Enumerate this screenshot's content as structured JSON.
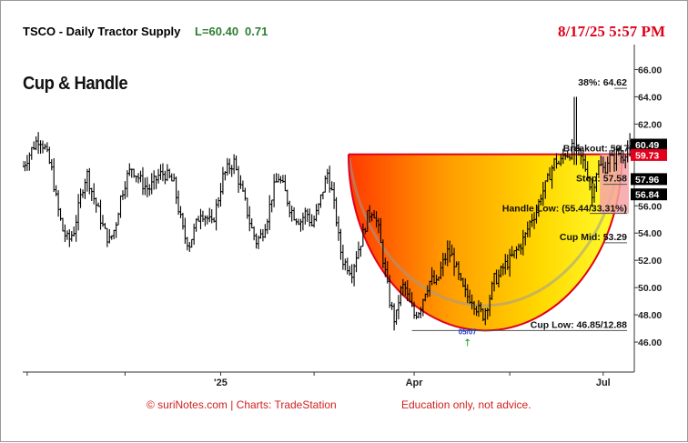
{
  "header": {
    "symbol_title": "TSCO - Daily  Tractor Supply",
    "last": "L=60.40",
    "change": "0.71",
    "timestamp": "8/17/25 5:57 PM"
  },
  "pattern_title": "Cup & Handle",
  "footer": {
    "credit": "© suriNotes.com |  Charts: TradeStation",
    "disclaimer": "Education only, not advice."
  },
  "colors": {
    "red": "#e0001b",
    "green_text": "#2e7d32",
    "cup_gradient": [
      "#ff3a00",
      "#ff9a00",
      "#ffd800",
      "#ffff30"
    ],
    "handle_zone": "#f6a3a6"
  },
  "chart_data": {
    "type": "ohlc",
    "x_tick_labels": [
      "'25",
      "Apr",
      "Jul"
    ],
    "y_ticks": [
      46,
      48,
      50,
      52,
      54,
      56,
      58,
      60,
      62,
      64,
      66
    ],
    "y_tick_labels": [
      "46.00",
      "48.00",
      "50.00",
      "52.00",
      "54.00",
      "56.00",
      "58.00",
      "60.00",
      "62.00",
      "64.00",
      "66.00"
    ],
    "ylim": [
      43.8,
      67.7
    ],
    "price_tags": [
      {
        "value": 60.49,
        "text": "60.49",
        "style": "black"
      },
      {
        "value": 59.73,
        "text": "59.73",
        "style": "red"
      },
      {
        "value": 57.96,
        "text": "57.96",
        "style": "black"
      },
      {
        "value": 56.84,
        "text": "56.84",
        "style": "black"
      }
    ],
    "annotations": {
      "target": "38%: 64.62",
      "breakout": "Breakout: 59.78/51.00",
      "stop": "Stop: 57.58",
      "handle_low": "Handle Low: (55.44/33.31%)",
      "cup_mid": "Cup Mid: 53.29",
      "cup_low": "Cup Low: 46.85/12.88",
      "cup_low_date": "05/07"
    },
    "levels": {
      "target": 64.62,
      "breakout": 59.78,
      "stop": 57.58,
      "handle_low": 55.44,
      "cup_mid": 53.29,
      "cup_low": 46.85
    },
    "close_path": [
      [
        0,
        58.9
      ],
      [
        6,
        59.8
      ],
      [
        11,
        60.6
      ],
      [
        15,
        61.0
      ],
      [
        20,
        60.2
      ],
      [
        26,
        58.6
      ],
      [
        31,
        56.0
      ],
      [
        36,
        54.2
      ],
      [
        41,
        53.4
      ],
      [
        46,
        54.2
      ],
      [
        51,
        56.2
      ],
      [
        55,
        57.8
      ],
      [
        58,
        58.3
      ],
      [
        63,
        56.8
      ],
      [
        68,
        55.6
      ],
      [
        73,
        54.2
      ],
      [
        78,
        53.4
      ],
      [
        83,
        54.4
      ],
      [
        88,
        56.6
      ],
      [
        93,
        58.0
      ],
      [
        98,
        58.8
      ],
      [
        103,
        58.2
      ],
      [
        108,
        57.6
      ],
      [
        113,
        57.2
      ],
      [
        117,
        57.6
      ],
      [
        122,
        58.2
      ],
      [
        127,
        58.4
      ],
      [
        132,
        58.0
      ],
      [
        136,
        57.6
      ],
      [
        140,
        55.8
      ],
      [
        145,
        53.8
      ],
      [
        150,
        53.2
      ],
      [
        155,
        54.4
      ],
      [
        160,
        55.6
      ],
      [
        165,
        55.2
      ],
      [
        170,
        54.6
      ],
      [
        175,
        56.2
      ],
      [
        180,
        58.1
      ],
      [
        185,
        58.8
      ],
      [
        190,
        59.2
      ],
      [
        195,
        57.6
      ],
      [
        200,
        56.2
      ],
      [
        205,
        54.5
      ],
      [
        210,
        53.4
      ],
      [
        215,
        53.9
      ],
      [
        220,
        55.2
      ],
      [
        225,
        57.1
      ],
      [
        230,
        58.1
      ],
      [
        235,
        57.2
      ],
      [
        240,
        55.9
      ],
      [
        245,
        55.2
      ],
      [
        250,
        54.9
      ],
      [
        255,
        55.6
      ],
      [
        260,
        54.6
      ],
      [
        265,
        55.6
      ],
      [
        270,
        57.2
      ],
      [
        274,
        58.4
      ],
      [
        278,
        57.0
      ],
      [
        282,
        55.0
      ],
      [
        285,
        53.0
      ],
      [
        288,
        52.0
      ],
      [
        292,
        51.6
      ],
      [
        296,
        51.2
      ],
      [
        300,
        52.4
      ],
      [
        305,
        53.6
      ],
      [
        310,
        55.2
      ],
      [
        315,
        55.8
      ],
      [
        320,
        54.2
      ],
      [
        325,
        51.6
      ],
      [
        330,
        49.0
      ],
      [
        335,
        47.4
      ],
      [
        339,
        49.6
      ],
      [
        343,
        50.2
      ],
      [
        347,
        49.0
      ],
      [
        352,
        48.0
      ],
      [
        357,
        48.4
      ],
      [
        362,
        49.8
      ],
      [
        367,
        50.6
      ],
      [
        372,
        50.2
      ],
      [
        377,
        51.6
      ],
      [
        382,
        52.6
      ],
      [
        387,
        52.2
      ],
      [
        391,
        51.0
      ],
      [
        395,
        50.0
      ],
      [
        399,
        49.4
      ],
      [
        404,
        49.2
      ],
      [
        409,
        48.4
      ],
      [
        414,
        48.0
      ],
      [
        419,
        49.0
      ],
      [
        424,
        50.6
      ],
      [
        428,
        50.8
      ],
      [
        433,
        51.6
      ],
      [
        438,
        52.0
      ],
      [
        443,
        52.6
      ],
      [
        448,
        53.2
      ],
      [
        452,
        53.8
      ],
      [
        457,
        55.0
      ],
      [
        462,
        55.6
      ],
      [
        466,
        56.8
      ],
      [
        471,
        57.6
      ],
      [
        475,
        58.6
      ],
      [
        479,
        59.4
      ],
      [
        483,
        59.0
      ],
      [
        487,
        59.9
      ],
      [
        491,
        59.8
      ],
      [
        495,
        60.3
      ],
      [
        500,
        59.8
      ],
      [
        504,
        59.2
      ],
      [
        508,
        58.4
      ],
      [
        512,
        56.6
      ],
      [
        515,
        58.4
      ],
      [
        519,
        59.0
      ],
      [
        523,
        58.6
      ],
      [
        527,
        59.6
      ],
      [
        531,
        59.3
      ],
      [
        535,
        60.0
      ],
      [
        539,
        59.5
      ],
      [
        543,
        60.2
      ],
      [
        547,
        60.4
      ]
    ],
    "spikes": [
      {
        "i": 497,
        "h": 64.0,
        "l": 59.0
      }
    ]
  }
}
